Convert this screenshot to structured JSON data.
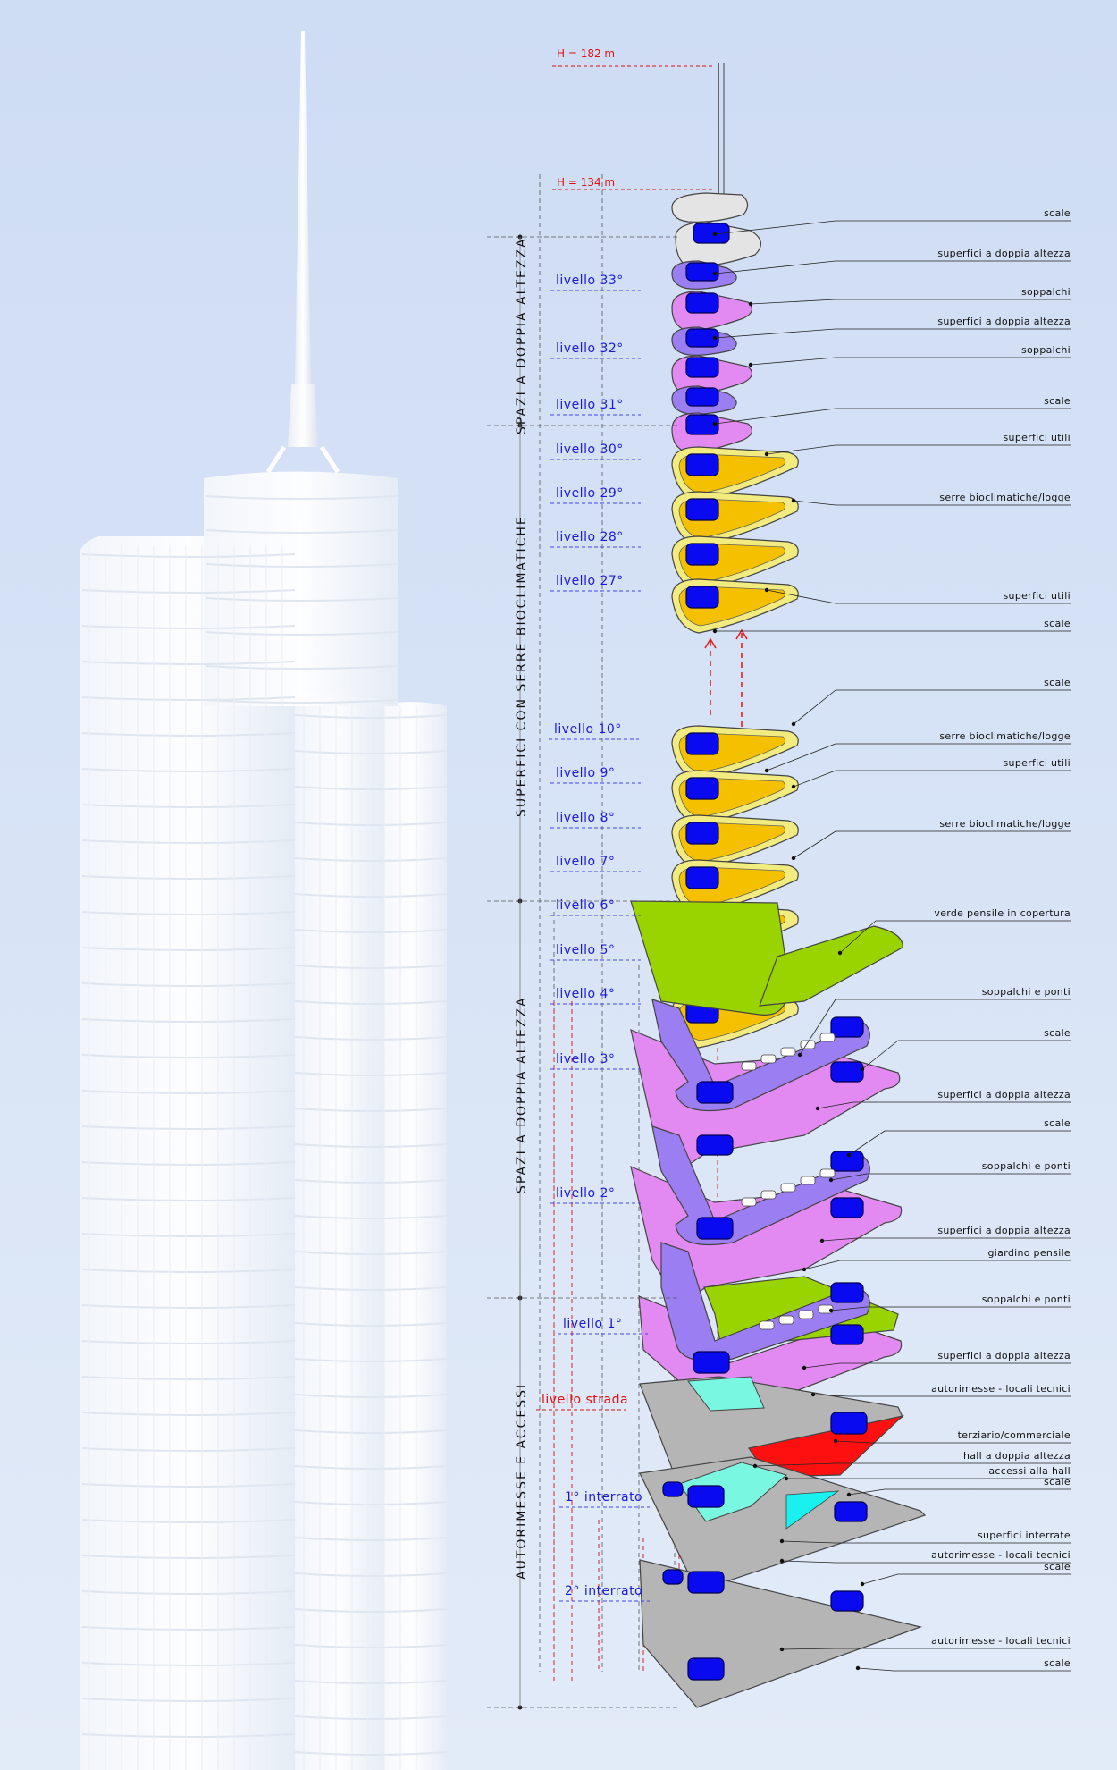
{
  "heights": [
    {
      "id": "h182",
      "text": "H = 182 m"
    },
    {
      "id": "h134",
      "text": "H = 134 m"
    }
  ],
  "zones": [
    {
      "id": "zone-top",
      "text": "SPAZI A DOPPIA ALTEZZA"
    },
    {
      "id": "zone-serre",
      "text": "SUPERFICI CON SERRE BIOCLIMATICHE"
    },
    {
      "id": "zone-mid",
      "text": "SPAZI A DOPPIA ALTEZZA"
    },
    {
      "id": "zone-base",
      "text": "AUTORIMESSE E ACCESSI"
    }
  ],
  "levels": [
    {
      "text": "livello 33°",
      "color": "blue"
    },
    {
      "text": "livello 32°",
      "color": "blue"
    },
    {
      "text": "livello 31°",
      "color": "blue"
    },
    {
      "text": "livello 30°",
      "color": "blue"
    },
    {
      "text": "livello 29°",
      "color": "blue"
    },
    {
      "text": "livello 28°",
      "color": "blue"
    },
    {
      "text": "livello 27°",
      "color": "blue"
    },
    {
      "text": "livello 10°",
      "color": "blue"
    },
    {
      "text": "livello 9°",
      "color": "blue"
    },
    {
      "text": "livello 8°",
      "color": "blue"
    },
    {
      "text": "livello 7°",
      "color": "blue"
    },
    {
      "text": "livello 6°",
      "color": "blue"
    },
    {
      "text": "livello 5°",
      "color": "blue"
    },
    {
      "text": "livello 4°",
      "color": "blue"
    },
    {
      "text": "livello 3°",
      "color": "blue"
    },
    {
      "text": "livello 2°",
      "color": "blue"
    },
    {
      "text": "livello 1°",
      "color": "blue"
    },
    {
      "text": "livello strada",
      "color": "red"
    },
    {
      "text": "1° interrato",
      "color": "blue"
    },
    {
      "text": "2° interrato",
      "color": "blue"
    }
  ],
  "callouts": [
    "scale",
    "superfici a doppia altezza",
    "soppalchi",
    "superfici a doppia altezza",
    "soppalchi",
    "scale",
    "superfici utili",
    "serre bioclimatiche/logge",
    "superfici utili",
    "scale",
    "scale",
    "serre bioclimatiche/logge",
    "superfici utili",
    "serre bioclimatiche/logge",
    "verde pensile in copertura",
    "soppalchi e ponti",
    "scale",
    "superfici a doppia altezza",
    "scale",
    "soppalchi e ponti",
    "superfici a doppia altezza",
    "giardino pensile",
    "soppalchi e ponti",
    "superfici a doppia altezza",
    "autorimesse - locali tecnici",
    "terziario/commerciale",
    "hall a doppia altezza",
    "accessi alla hall",
    "scale",
    "superfici interrate",
    "autorimesse - locali tecnici",
    "scale",
    "autorimesse - locali tecnici",
    "scale"
  ],
  "colors": {
    "background": "#d6e3f7",
    "stair": "#0a0af0",
    "double_height": "#e38af2",
    "bioclimatic": "#f5c000",
    "bioclimatic_edge": "#f2ec80",
    "green_roof": "#9ad400",
    "commercial": "#ff1010",
    "hall": "#7af7e0",
    "parking": "#b5b5b5",
    "mezzanine": "#9b7ef2",
    "top_roof": "#e4e4e4"
  }
}
